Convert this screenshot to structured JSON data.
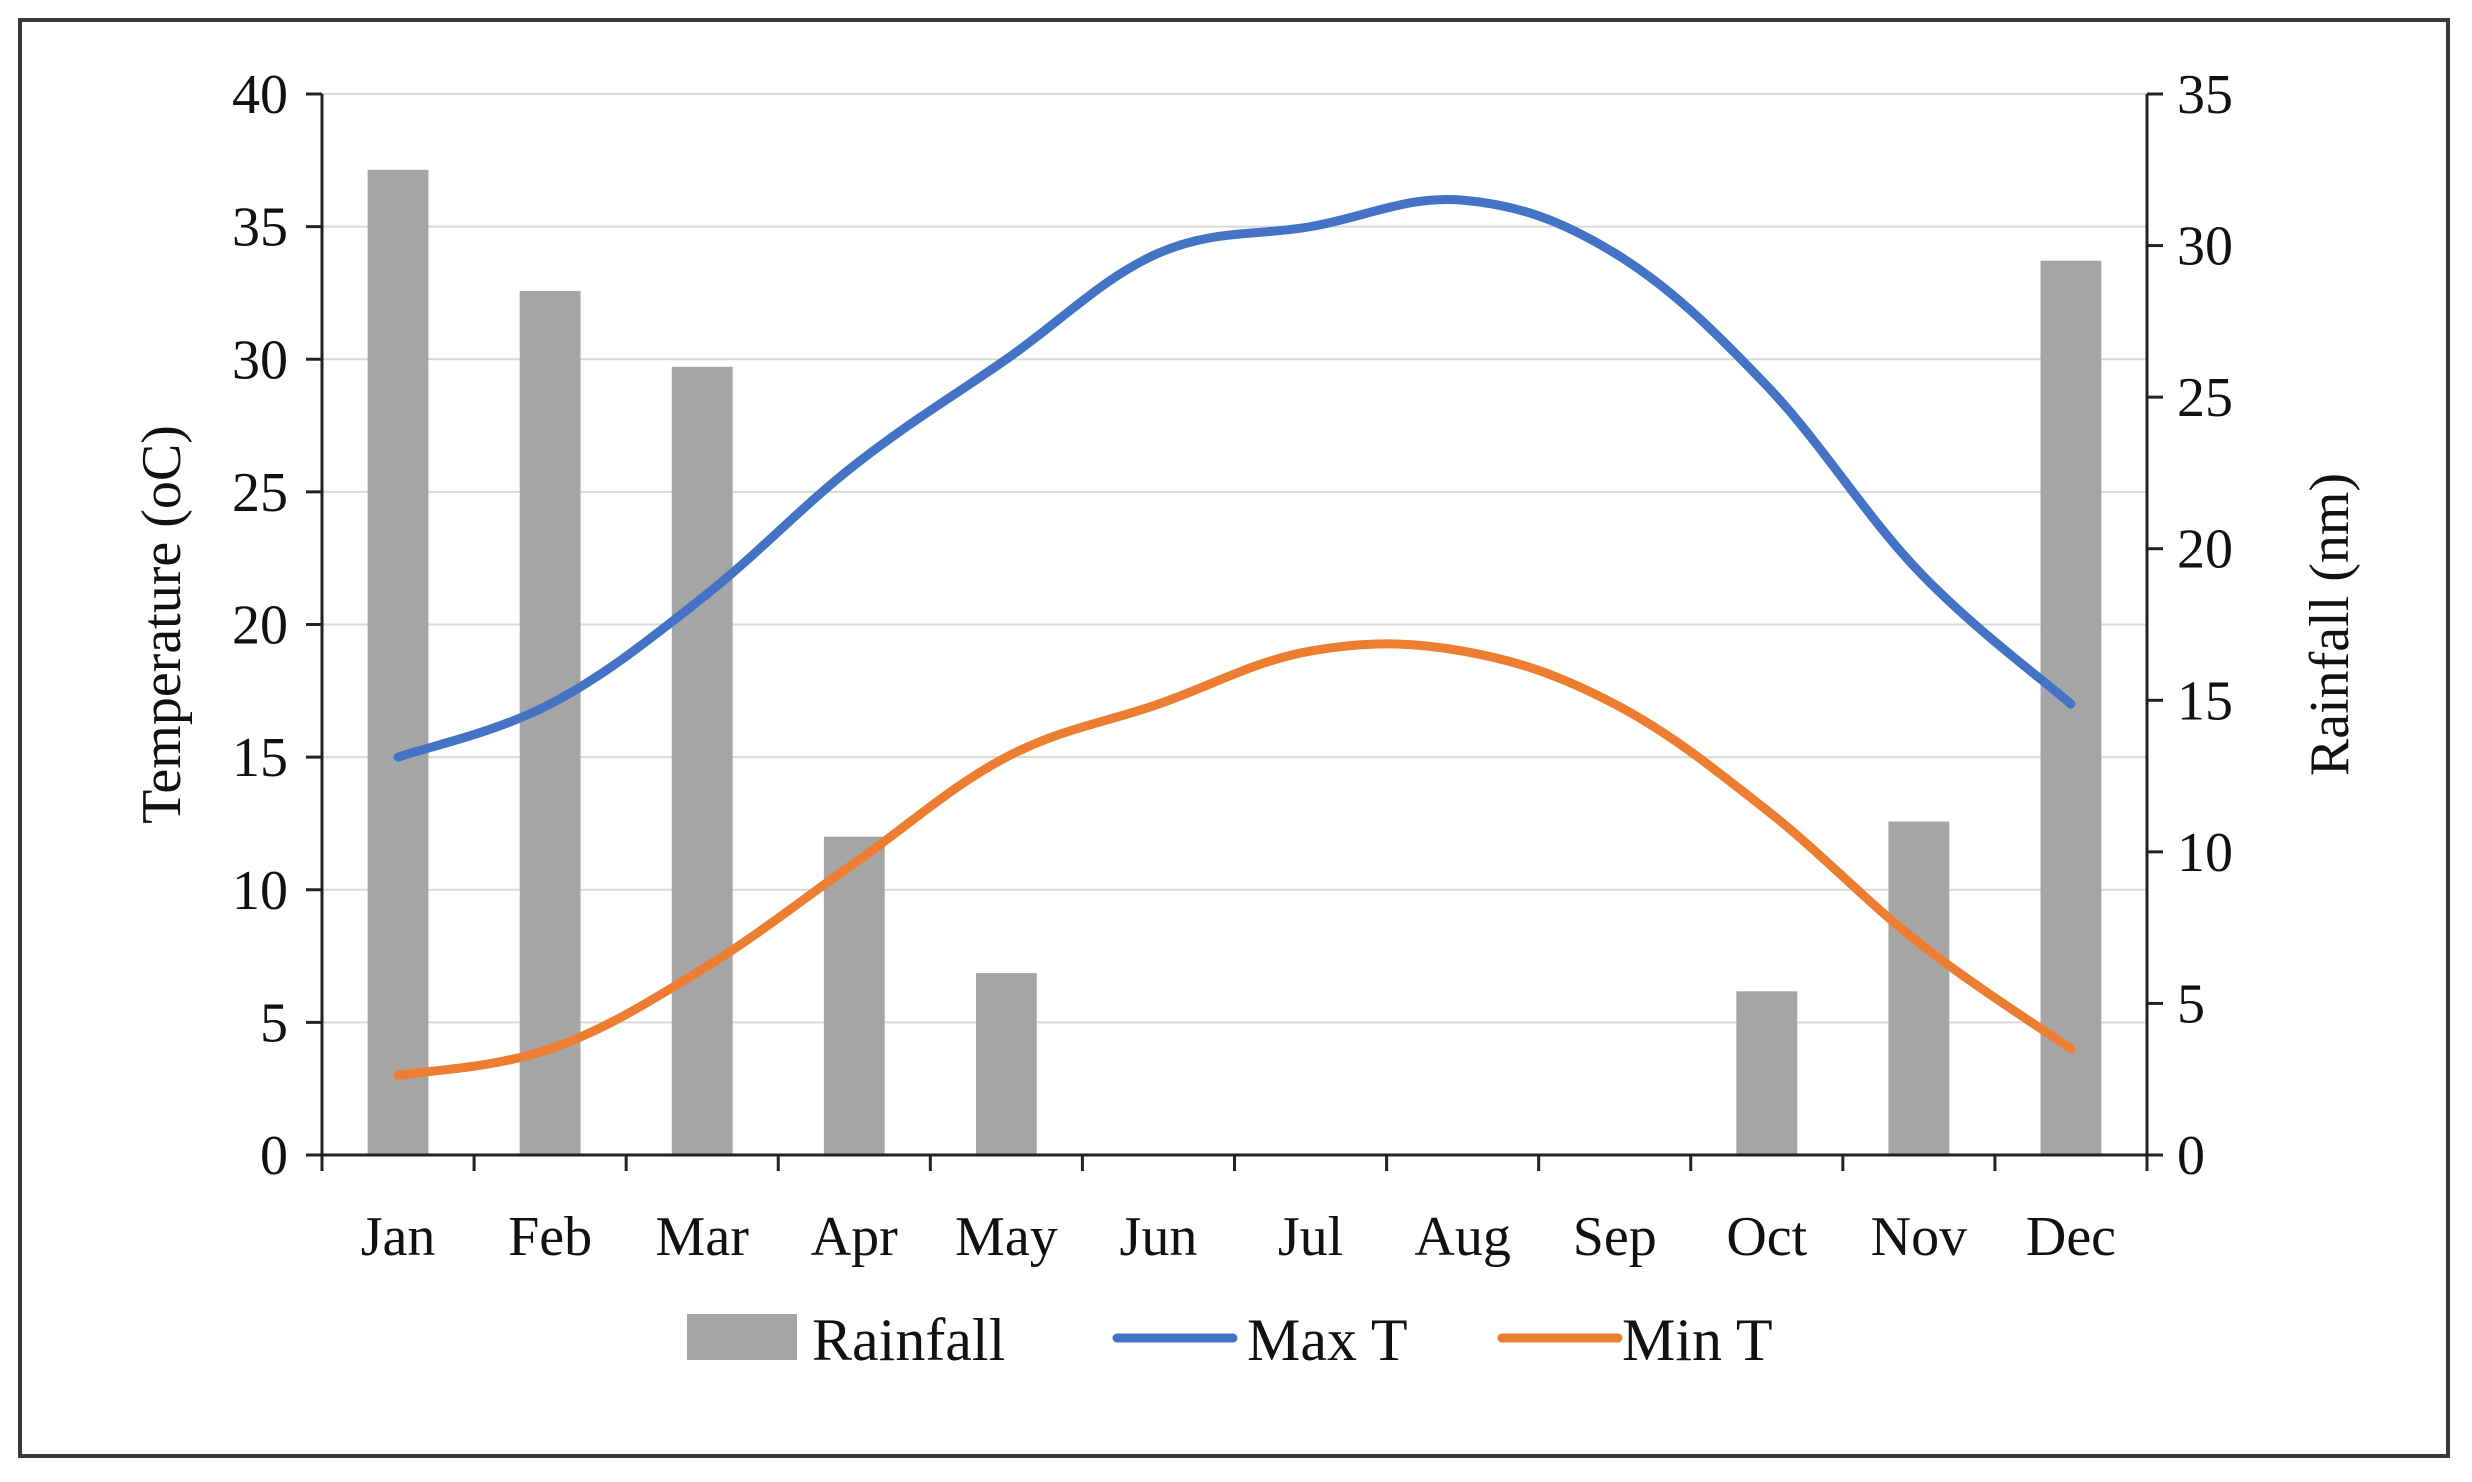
{
  "chart_data": {
    "type": "bar+line",
    "categories": [
      "Jan",
      "Feb",
      "Mar",
      "Apr",
      "May",
      "Jun",
      "Jul",
      "Aug",
      "Sep",
      "Oct",
      "Nov",
      "Dec"
    ],
    "series": [
      {
        "name": "Rainfall",
        "kind": "bar",
        "axis": "right",
        "color": "#a5a5a5",
        "values": [
          32.5,
          28.5,
          26.0,
          10.5,
          6.0,
          0,
          0,
          0,
          0,
          5.4,
          11.0,
          29.5
        ]
      },
      {
        "name": "Max T",
        "kind": "line",
        "axis": "left",
        "color": "#4472c4",
        "values": [
          15,
          17,
          21,
          26,
          30,
          34,
          35,
          36,
          34,
          29,
          22,
          17
        ]
      },
      {
        "name": "Min T",
        "kind": "line",
        "axis": "left",
        "color": "#ed7d31",
        "values": [
          3,
          4,
          7,
          11,
          15,
          17,
          19,
          19,
          17,
          13,
          8,
          4
        ]
      }
    ],
    "y_left": {
      "label": "Temperature (oC)",
      "ylim": [
        0,
        40
      ],
      "ticks": [
        0,
        5,
        10,
        15,
        20,
        25,
        30,
        35,
        40
      ]
    },
    "y_right": {
      "label": "Rainfall (nm)",
      "ylim": [
        0,
        35
      ],
      "ticks": [
        0,
        5,
        10,
        15,
        20,
        25,
        30,
        35
      ]
    },
    "grid": true,
    "legend": {
      "placement": "bottom",
      "entries": [
        "Rainfall",
        "Max T",
        "Min T"
      ]
    }
  }
}
